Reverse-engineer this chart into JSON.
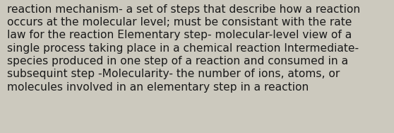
{
  "lines": [
    "reaction mechanism- a set of steps that describe how a reaction",
    "occurs at the molecular level; must be consistant with the rate",
    "law for the reaction Elementary step- molecular-level view of a",
    "single process taking place in a chemical reaction Intermediate-",
    "species produced in one step of a reaction and consumed in a",
    "subsequint step -Molecularity- the number of ions, atoms, or",
    "molecules involved in an elementary step in a reaction"
  ],
  "background_color": "#ccc9be",
  "text_color": "#1a1a1a",
  "font_size": 11.2,
  "font_family": "DejaVu Sans",
  "fig_width": 5.58,
  "fig_height": 1.88,
  "dpi": 100
}
